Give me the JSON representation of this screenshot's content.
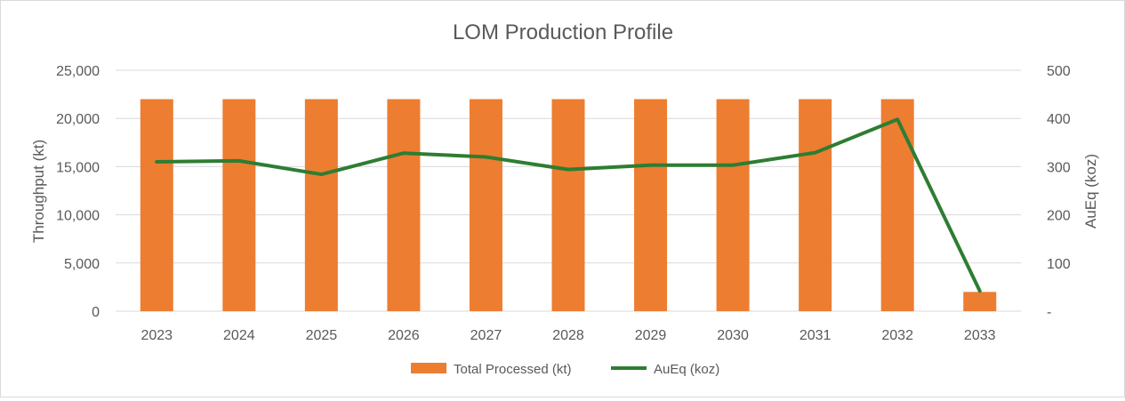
{
  "chart_data": {
    "type": "bar",
    "title": "LOM Production Profile",
    "categories": [
      "2023",
      "2024",
      "2025",
      "2026",
      "2027",
      "2028",
      "2029",
      "2030",
      "2031",
      "2032",
      "2033"
    ],
    "series": [
      {
        "name": "Total Processed (kt)",
        "type": "bar",
        "axis": "left",
        "color": "#ED7D31",
        "values": [
          22000,
          22000,
          22000,
          22000,
          22000,
          22000,
          22000,
          22000,
          22000,
          22000,
          2000
        ]
      },
      {
        "name": "AuEq (koz)",
        "type": "line",
        "axis": "right",
        "color": "#2E7D32",
        "values": [
          310,
          312,
          284,
          328,
          320,
          294,
          303,
          303,
          329,
          398,
          42
        ]
      }
    ],
    "ylabel": "Throughput (kt)",
    "ylim": [
      0,
      25000
    ],
    "yticks": [
      "0",
      "5,000",
      "10,000",
      "15,000",
      "20,000",
      "25,000"
    ],
    "y2label": "AuEq (koz)",
    "y2lim": [
      0,
      500
    ],
    "y2ticks": [
      "-",
      "100",
      "200",
      "300",
      "400",
      "500"
    ],
    "grid": true,
    "legend_position": "bottom"
  }
}
